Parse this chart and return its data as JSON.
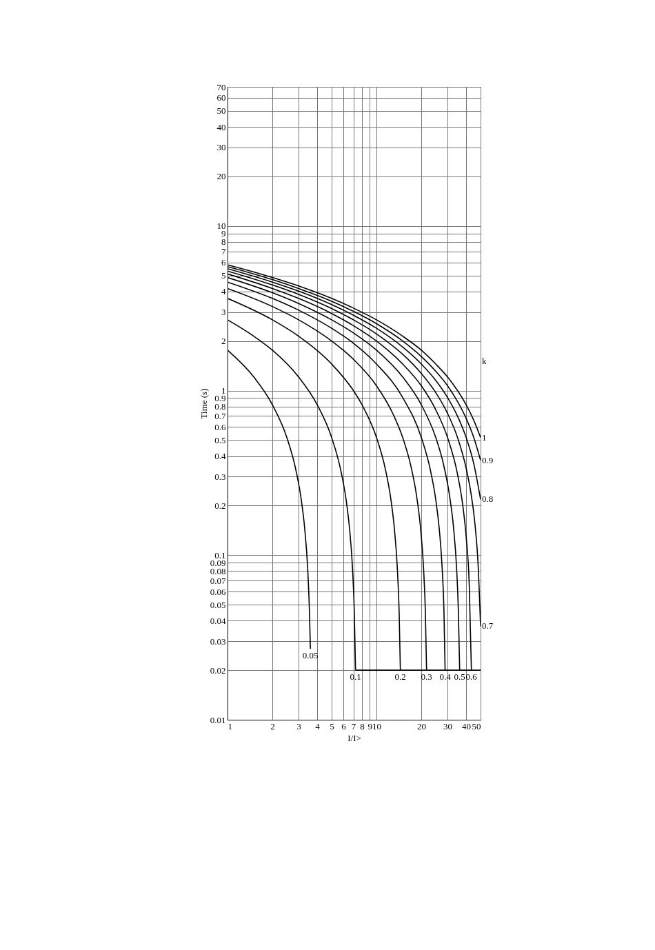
{
  "chart_data": {
    "type": "line",
    "xlabel": "I/I>",
    "ylabel": "Time (s)",
    "legend_title": "k",
    "log": "xy",
    "grid": true,
    "legend": false,
    "xlim": [
      1,
      50
    ],
    "ylim": [
      0.01,
      70
    ],
    "xticks": [
      1,
      2,
      3,
      4,
      5,
      6,
      7,
      8,
      9,
      10,
      20,
      30,
      40,
      50
    ],
    "yticks": [
      0.01,
      0.02,
      0.03,
      0.04,
      0.05,
      0.06,
      0.07,
      0.08,
      0.09,
      0.1,
      0.2,
      0.3,
      0.4,
      0.5,
      0.6,
      0.7,
      0.8,
      0.9,
      1,
      2,
      3,
      4,
      5,
      6,
      7,
      8,
      9,
      10,
      20,
      30,
      40,
      50,
      60,
      70
    ],
    "series": [
      {
        "name": "0.05",
        "color": "#000000",
        "x": [
          1,
          1.5,
          2,
          2.5,
          2.875,
          3.125,
          3.3,
          3.45,
          3.55,
          3.6
        ],
        "values": [
          1.76,
          1.21,
          0.82,
          0.519,
          0.33,
          0.218,
          0.144,
          0.084,
          0.045,
          0.027
        ]
      },
      {
        "name": "0.1",
        "color": "#000000",
        "x": [
          1,
          1.5,
          2,
          3,
          4,
          5,
          5.75,
          6.25,
          6.6,
          6.9,
          7.1,
          7.235
        ],
        "values": [
          2.69,
          2.14,
          1.76,
          1.21,
          0.82,
          0.519,
          0.33,
          0.218,
          0.144,
          0.084,
          0.045,
          0.02
        ]
      },
      {
        "name": "0.2",
        "color": "#000000",
        "x": [
          1,
          2,
          3,
          5,
          7,
          8,
          10,
          11.5,
          12.5,
          13.2,
          13.8,
          14.2,
          14.47
        ],
        "values": [
          3.63,
          2.69,
          2.14,
          1.45,
          1.0,
          0.82,
          0.519,
          0.33,
          0.218,
          0.144,
          0.084,
          0.045,
          0.02
        ]
      },
      {
        "name": "0.3",
        "color": "#000000",
        "x": [
          1,
          2,
          3,
          5,
          7,
          10,
          13,
          15,
          17,
          18.5,
          19.8,
          20.7,
          21.3,
          21.7
        ],
        "values": [
          4.17,
          3.24,
          2.69,
          2.0,
          1.55,
          1.07,
          0.712,
          0.519,
          0.35,
          0.236,
          0.144,
          0.084,
          0.045,
          0.02
        ]
      },
      {
        "name": "0.4",
        "color": "#000000",
        "x": [
          1,
          2,
          3,
          5,
          7,
          10,
          15,
          20,
          23,
          25,
          26.5,
          27.6,
          28.4,
          28.9
        ],
        "values": [
          4.56,
          3.63,
          3.08,
          2.39,
          1.94,
          1.45,
          0.907,
          0.519,
          0.33,
          0.218,
          0.139,
          0.084,
          0.045,
          0.02
        ]
      },
      {
        "name": "0.5",
        "color": "#000000",
        "x": [
          1,
          2,
          3,
          5,
          7,
          10,
          15,
          20,
          25,
          28,
          31,
          33,
          34.5,
          35.5,
          36.2
        ],
        "values": [
          4.86,
          3.93,
          3.38,
          2.69,
          2.24,
          1.76,
          1.21,
          0.82,
          0.519,
          0.366,
          0.228,
          0.144,
          0.084,
          0.045,
          0.02
        ]
      },
      {
        "name": "0.6",
        "color": "#000000",
        "x": [
          1,
          2,
          3,
          5,
          7,
          10,
          15,
          20,
          25,
          30,
          35,
          38,
          40,
          42,
          43.4
        ],
        "values": [
          5.11,
          4.17,
          3.63,
          2.94,
          2.48,
          2.0,
          1.45,
          1.07,
          0.765,
          0.519,
          0.311,
          0.2,
          0.13,
          0.065,
          0.02
        ]
      },
      {
        "name": "0.7",
        "color": "#000000",
        "x": [
          1,
          2,
          3,
          5,
          7,
          10,
          15,
          20,
          25,
          30,
          35,
          40,
          43,
          46,
          48,
          50
        ],
        "values": [
          5.32,
          4.38,
          3.84,
          3.15,
          2.69,
          2.21,
          1.66,
          1.27,
          0.973,
          0.727,
          0.519,
          0.338,
          0.241,
          0.15,
          0.092,
          0.037
        ]
      },
      {
        "name": "0.8",
        "color": "#000000",
        "x": [
          1,
          2,
          3,
          5,
          7,
          10,
          15,
          20,
          25,
          30,
          35,
          40,
          45,
          50
        ],
        "values": [
          5.5,
          4.56,
          4.02,
          3.33,
          2.87,
          2.39,
          1.84,
          1.45,
          1.153,
          0.907,
          0.699,
          0.519,
          0.36,
          0.218
        ]
      },
      {
        "name": "0.9",
        "color": "#000000",
        "x": [
          1,
          2,
          3,
          5,
          7,
          10,
          15,
          20,
          25,
          30,
          35,
          40,
          45,
          50
        ],
        "values": [
          5.66,
          4.72,
          4.17,
          3.49,
          3.03,
          2.55,
          2.0,
          1.61,
          1.31,
          1.07,
          0.858,
          0.678,
          0.519,
          0.377
        ]
      },
      {
        "name": "1",
        "color": "#000000",
        "x": [
          1,
          1.5,
          2,
          3,
          4,
          5,
          7,
          10,
          15,
          20,
          25,
          30,
          35,
          40,
          45,
          50
        ],
        "values": [
          5.8,
          5.25,
          4.86,
          4.32,
          3.93,
          3.63,
          3.17,
          2.69,
          2.14,
          1.76,
          1.45,
          1.21,
          1.0,
          0.82,
          0.66,
          0.519
        ]
      },
      {
        "color": "#000000",
        "x": [
          7.235,
          50
        ],
        "values": [
          0.02,
          0.02
        ]
      }
    ]
  }
}
